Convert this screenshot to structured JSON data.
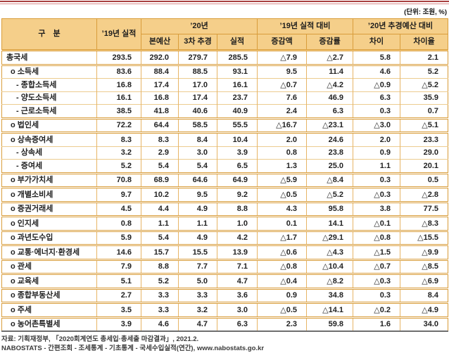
{
  "unit_label": "(단위: 조원, %)",
  "colors": {
    "header_bg": "#f5cf8a",
    "border_orange": "#d99d3b",
    "top_rule_red": "#a84040",
    "bottom_rule_gray": "#6e6e6e"
  },
  "table": {
    "header": {
      "col_category": "구　분",
      "col_2019_actual": "’19년 실적",
      "group_2020": "’20년",
      "group_vs_2019_actual": "’19년 실적 대비",
      "group_vs_2020_budget": "’20년 추경예산 대비",
      "sub": [
        "본예산",
        "3차 추경",
        "실적",
        "증감액",
        "증감률",
        "차이",
        "차이율"
      ]
    },
    "rows": [
      {
        "label": "총국세",
        "level": 0,
        "values": [
          "293.5",
          "292.0",
          "279.7",
          "285.5",
          "△7.9",
          "△2.7",
          "5.8",
          "2.1"
        ]
      },
      {
        "label": "o 소득세",
        "level": 1,
        "values": [
          "83.6",
          "88.4",
          "88.5",
          "93.1",
          "9.5",
          "11.4",
          "4.6",
          "5.2"
        ]
      },
      {
        "label": "- 종합소득세",
        "level": 2,
        "values": [
          "16.8",
          "17.4",
          "17.0",
          "16.1",
          "△0.7",
          "△4.2",
          "△0.9",
          "△5.2"
        ]
      },
      {
        "label": "- 양도소득세",
        "level": 2,
        "values": [
          "16.1",
          "16.8",
          "17.4",
          "23.7",
          "7.6",
          "46.9",
          "6.3",
          "35.9"
        ]
      },
      {
        "label": "- 근로소득세",
        "level": 2,
        "values": [
          "38.5",
          "41.8",
          "40.6",
          "40.9",
          "2.4",
          "6.3",
          "0.3",
          "0.7"
        ]
      },
      {
        "label": "o 법인세",
        "level": 1,
        "values": [
          "72.2",
          "64.4",
          "58.5",
          "55.5",
          "△16.7",
          "△23.1",
          "△3.0",
          "△5.1"
        ]
      },
      {
        "label": "o 상속증여세",
        "level": 1,
        "values": [
          "8.3",
          "8.3",
          "8.4",
          "10.4",
          "2.0",
          "24.6",
          "2.0",
          "23.3"
        ]
      },
      {
        "label": "- 상속세",
        "level": 2,
        "values": [
          "3.2",
          "2.9",
          "3.0",
          "3.9",
          "0.8",
          "23.8",
          "0.9",
          "29.0"
        ]
      },
      {
        "label": "- 증여세",
        "level": 2,
        "values": [
          "5.2",
          "5.4",
          "5.4",
          "6.5",
          "1.3",
          "25.0",
          "1.1",
          "20.1"
        ]
      },
      {
        "label": "o 부가가치세",
        "level": 1,
        "values": [
          "70.8",
          "68.9",
          "64.6",
          "64.9",
          "△5.9",
          "△8.4",
          "0.3",
          "0.5"
        ]
      },
      {
        "label": "o 개별소비세",
        "level": 1,
        "values": [
          "9.7",
          "10.2",
          "9.5",
          "9.2",
          "△0.5",
          "△5.2",
          "△0.3",
          "△2.8"
        ]
      },
      {
        "label": "o 증권거래세",
        "level": 1,
        "values": [
          "4.5",
          "4.4",
          "4.9",
          "8.8",
          "4.3",
          "95.8",
          "3.8",
          "77.5"
        ]
      },
      {
        "label": "o 인지세",
        "level": 1,
        "values": [
          "0.8",
          "1.1",
          "1.1",
          "1.0",
          "0.1",
          "14.1",
          "△0.1",
          "△8.3"
        ]
      },
      {
        "label": "o 과년도수입",
        "level": 1,
        "values": [
          "5.9",
          "5.4",
          "4.9",
          "4.2",
          "△1.7",
          "△29.1",
          "△0.8",
          "△15.5"
        ]
      },
      {
        "label": "o 교통·에너지·환경세",
        "level": 1,
        "values": [
          "14.6",
          "15.7",
          "15.5",
          "13.9",
          "△0.6",
          "△4.3",
          "△1.5",
          "△9.9"
        ]
      },
      {
        "label": "o 관세",
        "level": 1,
        "values": [
          "7.9",
          "8.8",
          "7.7",
          "7.1",
          "△0.8",
          "△10.4",
          "△0.7",
          "△8.5"
        ]
      },
      {
        "label": "o 교육세",
        "level": 1,
        "values": [
          "5.1",
          "5.2",
          "5.0",
          "4.7",
          "△0.4",
          "△8.2",
          "△0.3",
          "△6.9"
        ]
      },
      {
        "label": "o 종합부동산세",
        "level": 1,
        "values": [
          "2.7",
          "3.3",
          "3.3",
          "3.6",
          "0.9",
          "34.8",
          "0.3",
          "8.4"
        ]
      },
      {
        "label": "o 주세",
        "level": 1,
        "values": [
          "3.5",
          "3.3",
          "3.2",
          "3.0",
          "△0.5",
          "△14.1",
          "△0.2",
          "△4.9"
        ]
      },
      {
        "label": "o 농어촌특별세",
        "level": 1,
        "values": [
          "3.9",
          "4.6",
          "4.7",
          "6.3",
          "2.3",
          "59.8",
          "1.6",
          "34.0"
        ]
      }
    ]
  },
  "footer": {
    "line1": "자료: 기획재정부, 「2020회계연도 총세입·총세출 마감결과」, 2021.2.",
    "line2": "NABOSTATS - 간편조회 - 조세통계 - 기초통계 - 국세수입실적(연간), www.nabostats.go.kr"
  }
}
